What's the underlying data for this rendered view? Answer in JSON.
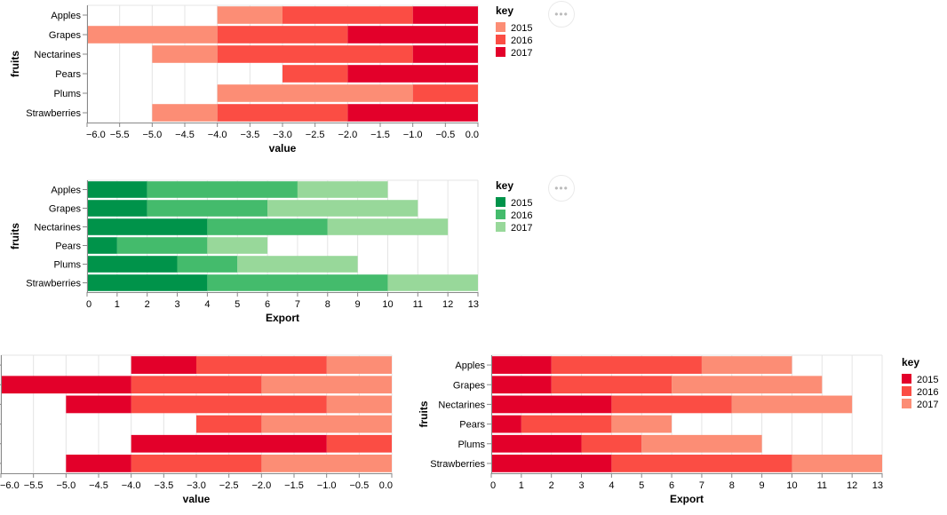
{
  "menu_label": "•••",
  "palettes": {
    "reds_light_to_dark": [
      "#fc8d75",
      "#fb4d44",
      "#e3002a"
    ],
    "reds_dark_to_light": [
      "#e3002a",
      "#fb4d44",
      "#fc8d75"
    ],
    "greens": [
      "#00934a",
      "#44bb6c",
      "#98d89a"
    ]
  },
  "chart_data": [
    {
      "id": "chart-1",
      "type": "bar",
      "orientation": "horizontal",
      "stacked": true,
      "title": "",
      "categories": [
        "Apples",
        "Grapes",
        "Nectarines",
        "Pears",
        "Plums",
        "Strawberries"
      ],
      "series": [
        {
          "name": "2015",
          "values": [
            -1,
            -2,
            -1,
            0,
            -3,
            -1
          ]
        },
        {
          "name": "2016",
          "values": [
            -2,
            -2,
            -3,
            -1,
            -1,
            -2
          ]
        },
        {
          "name": "2017",
          "values": [
            -1,
            -2,
            -1,
            -2,
            0,
            -2
          ]
        }
      ],
      "stack_order": [
        "2017",
        "2016",
        "2015"
      ],
      "xlabel": "value",
      "ylabel": "fruits",
      "xlim": [
        -6,
        0
      ],
      "xticks": [
        "−6.0",
        "−5.5",
        "−5.0",
        "−4.5",
        "−4.0",
        "−3.5",
        "−3.0",
        "−2.5",
        "−2.0",
        "−1.5",
        "−1.0",
        "−0.5",
        "0.0"
      ],
      "xtick_values": [
        -6,
        -5.5,
        -5,
        -4.5,
        -4,
        -3.5,
        -3,
        -2.5,
        -2,
        -1.5,
        -1,
        -0.5,
        0
      ],
      "colors": "reds_light_to_dark",
      "grid": true,
      "legend": {
        "title": "key",
        "entries": [
          "2015",
          "2016",
          "2017"
        ],
        "position": "right"
      },
      "show_y_labels": true
    },
    {
      "id": "chart-2",
      "type": "bar",
      "orientation": "horizontal",
      "stacked": true,
      "title": "",
      "categories": [
        "Apples",
        "Grapes",
        "Nectarines",
        "Pears",
        "Plums",
        "Strawberries"
      ],
      "series": [
        {
          "name": "2015",
          "values": [
            2,
            2,
            4,
            1,
            3,
            4
          ]
        },
        {
          "name": "2016",
          "values": [
            5,
            4,
            4,
            3,
            2,
            6
          ]
        },
        {
          "name": "2017",
          "values": [
            3,
            5,
            4,
            2,
            4,
            3
          ]
        }
      ],
      "stack_order": [
        "2015",
        "2016",
        "2017"
      ],
      "xlabel": "Export",
      "ylabel": "fruits",
      "xlim": [
        0,
        13
      ],
      "xticks": [
        "0",
        "1",
        "2",
        "3",
        "4",
        "5",
        "6",
        "7",
        "8",
        "9",
        "10",
        "11",
        "12",
        "13"
      ],
      "xtick_values": [
        0,
        1,
        2,
        3,
        4,
        5,
        6,
        7,
        8,
        9,
        10,
        11,
        12,
        13
      ],
      "colors": "greens",
      "grid": true,
      "legend": {
        "title": "key",
        "entries": [
          "2015",
          "2016",
          "2017"
        ],
        "position": "right"
      },
      "show_y_labels": true
    },
    {
      "id": "chart-3",
      "type": "bar",
      "orientation": "horizontal",
      "stacked": true,
      "title": "",
      "categories": [
        "Apples",
        "Grapes",
        "Nectarines",
        "Pears",
        "Plums",
        "Strawberries"
      ],
      "series": [
        {
          "name": "2015",
          "values": [
            -1,
            -2,
            -1,
            0,
            -3,
            -1
          ]
        },
        {
          "name": "2016",
          "values": [
            -2,
            -2,
            -3,
            -1,
            -1,
            -2
          ]
        },
        {
          "name": "2017",
          "values": [
            -1,
            -2,
            -1,
            -2,
            0,
            -2
          ]
        }
      ],
      "stack_order": [
        "2017",
        "2016",
        "2015"
      ],
      "xlabel": "value",
      "ylabel": "",
      "xlim": [
        -6,
        0
      ],
      "xticks": [
        "−6.0",
        "−5.5",
        "−5.0",
        "−4.5",
        "−4.0",
        "−3.5",
        "−3.0",
        "−2.5",
        "−2.0",
        "−1.5",
        "−1.0",
        "−0.5",
        "0.0"
      ],
      "xtick_values": [
        -6,
        -5.5,
        -5,
        -4.5,
        -4,
        -3.5,
        -3,
        -2.5,
        -2,
        -1.5,
        -1,
        -0.5,
        0
      ],
      "colors": "reds_dark_to_light",
      "grid": true,
      "legend": null,
      "show_y_labels": false
    },
    {
      "id": "chart-4",
      "type": "bar",
      "orientation": "horizontal",
      "stacked": true,
      "title": "",
      "categories": [
        "Apples",
        "Grapes",
        "Nectarines",
        "Pears",
        "Plums",
        "Strawberries"
      ],
      "series": [
        {
          "name": "2015",
          "values": [
            2,
            2,
            4,
            1,
            3,
            4
          ]
        },
        {
          "name": "2016",
          "values": [
            5,
            4,
            4,
            3,
            2,
            6
          ]
        },
        {
          "name": "2017",
          "values": [
            3,
            5,
            4,
            2,
            4,
            3
          ]
        }
      ],
      "stack_order": [
        "2015",
        "2016",
        "2017"
      ],
      "xlabel": "Export",
      "ylabel": "fruits",
      "xlim": [
        0,
        13
      ],
      "xticks": [
        "0",
        "1",
        "2",
        "3",
        "4",
        "5",
        "6",
        "7",
        "8",
        "9",
        "10",
        "11",
        "12",
        "13"
      ],
      "xtick_values": [
        0,
        1,
        2,
        3,
        4,
        5,
        6,
        7,
        8,
        9,
        10,
        11,
        12,
        13
      ],
      "colors": "reds_dark_to_light",
      "grid": true,
      "legend": {
        "title": "key",
        "entries": [
          "2015",
          "2016",
          "2017"
        ],
        "position": "right"
      },
      "show_y_labels": true
    }
  ]
}
